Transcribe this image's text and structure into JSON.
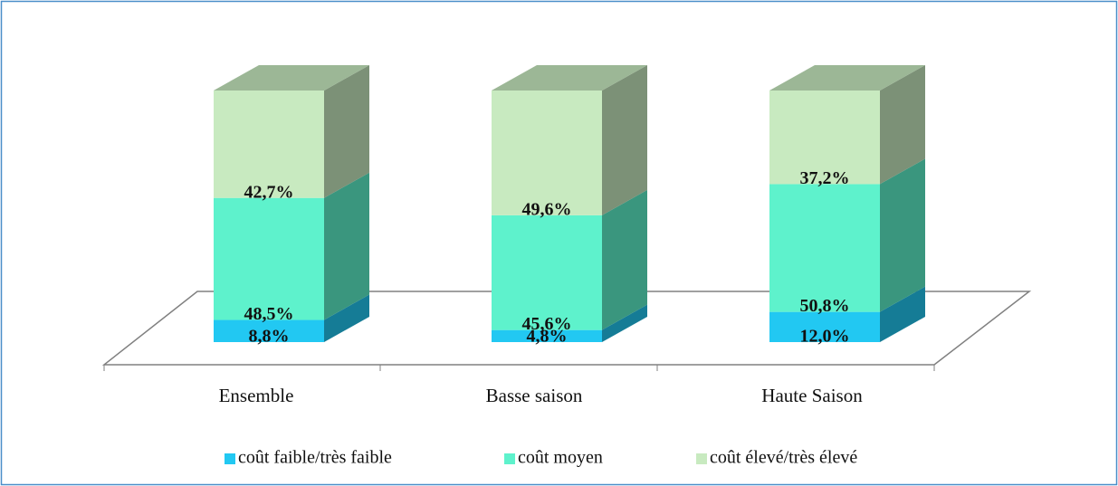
{
  "chart_data": {
    "type": "bar3d_stacked",
    "categories": [
      "Ensemble",
      "Basse saison",
      "Haute Saison"
    ],
    "series": [
      {
        "name": "coût faible/très faible",
        "color": "#22c8f2",
        "values": [
          8.8,
          4.8,
          12.0
        ],
        "value_labels": [
          "8,8%",
          "4,8%",
          "12,0%"
        ]
      },
      {
        "name": "coût moyen",
        "color": "#5ef2cc",
        "values": [
          48.5,
          45.6,
          50.8
        ],
        "value_labels": [
          "48,5%",
          "45,6%",
          "50,8%"
        ]
      },
      {
        "name": "coût élevé/très élevé",
        "color": "#c8eac0",
        "values": [
          42.7,
          49.6,
          37.2
        ],
        "value_labels": [
          "42,7%",
          "49,6%",
          "37,2%"
        ]
      }
    ],
    "ylim": [
      0,
      100
    ],
    "legend": "bottom"
  }
}
